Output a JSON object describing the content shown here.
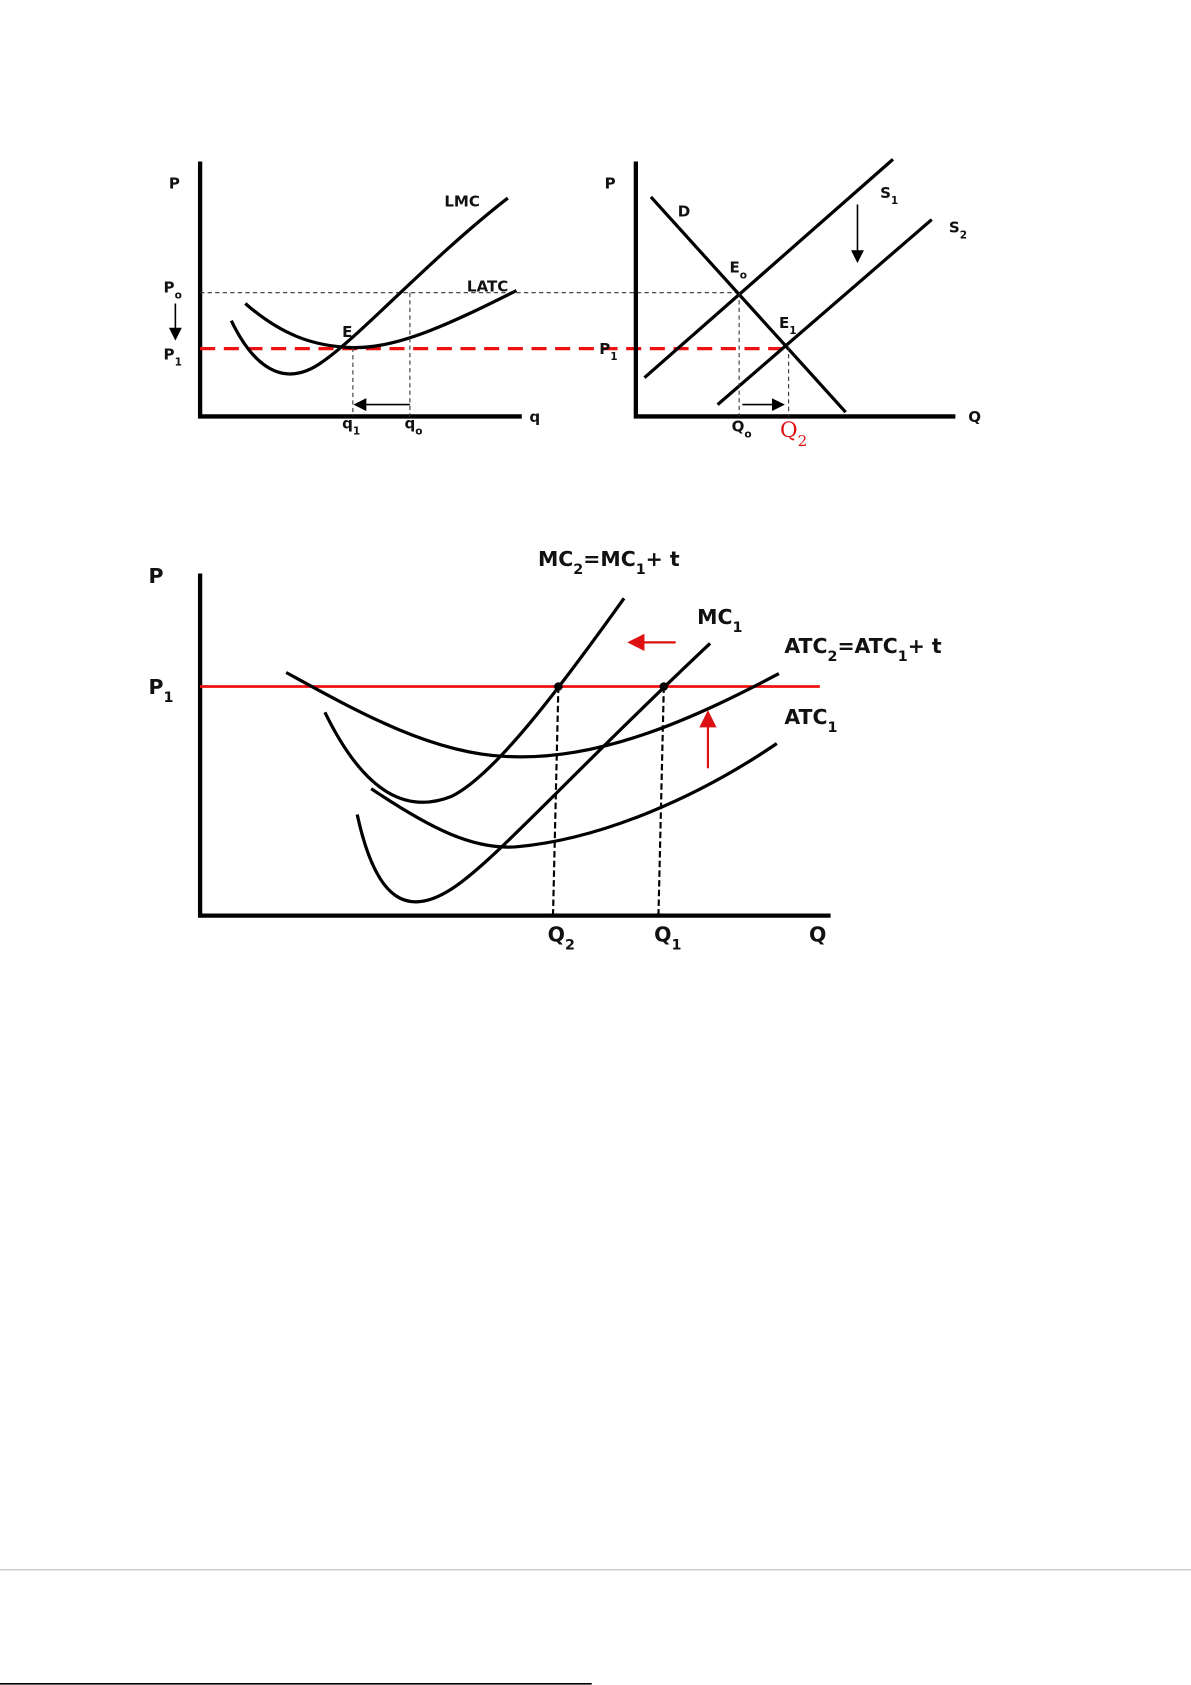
{
  "figure_top": {
    "left": {
      "y_axis": "P",
      "x_axis": "q",
      "lmc": "LMC",
      "latc": "LATC",
      "p0": {
        "text": "P",
        "sub": "o"
      },
      "p1": {
        "text": "P",
        "sub": "1"
      },
      "e": "E",
      "q1": {
        "text": "q",
        "sub": "1"
      },
      "q0": {
        "text": "q",
        "sub": "o"
      }
    },
    "right": {
      "y_axis": "P",
      "x_axis": "Q",
      "d": "D",
      "s1": {
        "text": "S",
        "sub": "1"
      },
      "s2": {
        "text": "S",
        "sub": "2"
      },
      "e0": {
        "text": "E",
        "sub": "o"
      },
      "e1": {
        "text": "E",
        "sub": "1"
      },
      "p1": {
        "text": "P",
        "sub": "1"
      },
      "q0": {
        "text": "Q",
        "sub": "o"
      },
      "q2": {
        "text": "Q",
        "sub": "2"
      }
    }
  },
  "figure_bottom": {
    "y_axis": "P",
    "x_axis": "Q",
    "mc2": [
      {
        "text": "MC",
        "sub": "2"
      },
      {
        "text": "=MC",
        "sub": "1"
      },
      {
        "text": "+ t"
      }
    ],
    "mc1": {
      "text": "MC",
      "sub": "1"
    },
    "atc2": [
      {
        "text": "ATC",
        "sub": "2"
      },
      {
        "text": "=ATC",
        "sub": "1"
      },
      {
        "text": "+ t"
      }
    ],
    "atc1": {
      "text": "ATC",
      "sub": "1"
    },
    "p1": {
      "text": "P",
      "sub": "1"
    },
    "q2": {
      "text": "Q",
      "sub": "2"
    },
    "q1": {
      "text": "Q",
      "sub": "1"
    }
  }
}
